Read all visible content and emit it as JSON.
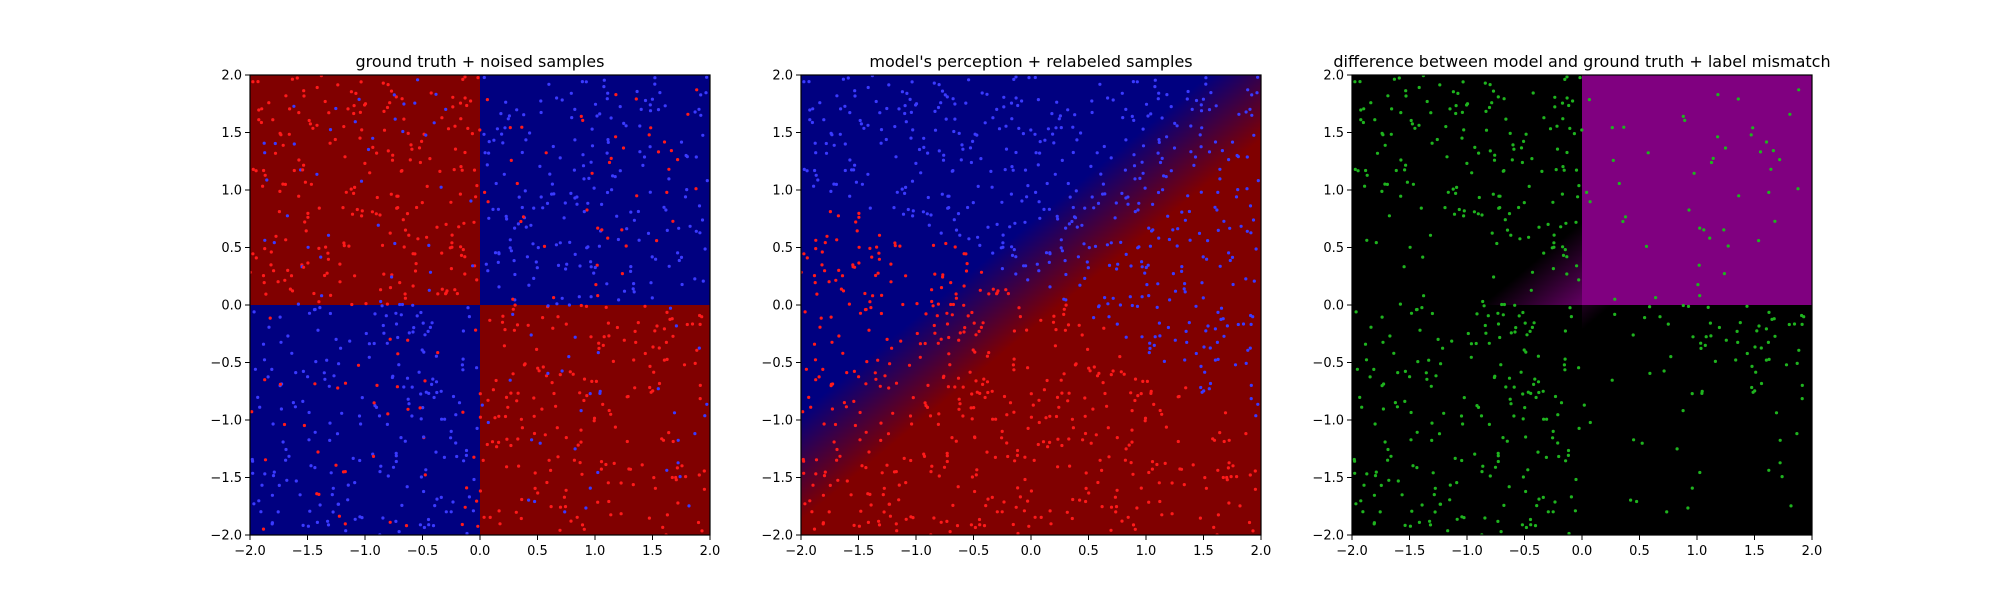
{
  "chart_data": [
    {
      "type": "heatmap",
      "title": "ground truth + noised samples",
      "xlim": [
        -2.0,
        2.0
      ],
      "ylim": [
        -2.0,
        2.0
      ],
      "xticks": [
        "−2.0",
        "−1.5",
        "−1.0",
        "−0.5",
        "0.0",
        "0.5",
        "1.0",
        "1.5",
        "2.0"
      ],
      "yticks": [
        "−2.0",
        "−1.5",
        "−1.0",
        "−0.5",
        "0.0",
        "0.5",
        "1.0",
        "1.5",
        "2.0"
      ],
      "background": "quadrant classification: red where x·y < 0, blue where x·y > 0",
      "scatter": "≈1000 uniform samples, colored by noised label (red/blue)",
      "colors": {
        "red": "#800000",
        "blue": "#000080",
        "point_red": "#ff1a1a",
        "point_blue": "#3a3aff"
      }
    },
    {
      "type": "heatmap",
      "title": "model's perception + relabeled samples",
      "xlim": [
        -2.0,
        2.0
      ],
      "ylim": [
        -2.0,
        2.0
      ],
      "xticks": [
        "−2.0",
        "−1.5",
        "−1.0",
        "−0.5",
        "0.0",
        "0.5",
        "1.0",
        "1.5",
        "2.0"
      ],
      "yticks": [
        "−2.0",
        "−1.5",
        "−1.0",
        "−0.5",
        "0.0",
        "0.5",
        "1.0",
        "1.5",
        "2.0"
      ],
      "background": "smooth curved boundary: red region lower-left, blue region upper-right",
      "scatter": "samples relabeled by model (red/blue)",
      "colors": {
        "red": "#800000",
        "blue": "#000080",
        "point_red": "#ff1a1a",
        "point_blue": "#3a3aff"
      }
    },
    {
      "type": "heatmap",
      "title": "difference between model and ground truth + label mismatch",
      "xlim": [
        -2.0,
        2.0
      ],
      "ylim": [
        -2.0,
        2.0
      ],
      "xticks": [
        "−2.0",
        "−1.5",
        "−1.0",
        "−0.5",
        "0.0",
        "0.5",
        "1.0",
        "1.5",
        "2.0"
      ],
      "yticks": [
        "−2.0",
        "−1.5",
        "−1.0",
        "−0.5",
        "0.0",
        "0.5",
        "1.0",
        "1.5",
        "2.0"
      ],
      "background": "magenta where model disagrees with ground truth, black elsewhere",
      "scatter": "green points marking label mismatches",
      "colors": {
        "diff": "#800080",
        "agree": "#000000",
        "point": "#1fb41f"
      }
    }
  ]
}
